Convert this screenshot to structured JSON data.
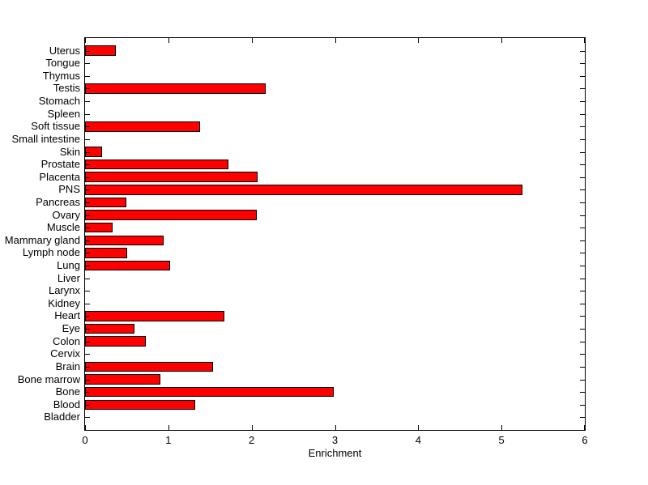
{
  "figure": {
    "background_color": "#ffffff",
    "axis_color": "#000000"
  },
  "chart_data": {
    "type": "bar",
    "orientation": "horizontal",
    "title": "",
    "xlabel": "Enrichment",
    "ylabel": "",
    "xlim": [
      0,
      6
    ],
    "xticks": [
      0,
      1,
      2,
      3,
      4,
      5,
      6
    ],
    "xtick_labels": [
      "0",
      "1",
      "2",
      "3",
      "4",
      "5",
      "6"
    ],
    "grid": false,
    "legend": null,
    "bar_color": "#ff0000",
    "bar_edge_color": "#000000",
    "categories": [
      "Uterus",
      "Tongue",
      "Thymus",
      "Testis",
      "Stomach",
      "Spleen",
      "Soft tissue",
      "Small intestine",
      "Skin",
      "Prostate",
      "Placenta",
      "PNS",
      "Pancreas",
      "Ovary",
      "Muscle",
      "Mammary gland",
      "Lymph node",
      "Lung",
      "Liver",
      "Larynx",
      "Kidney",
      "Heart",
      "Eye",
      "Colon",
      "Cervix",
      "Brain",
      "Bone marrow",
      "Bone",
      "Blood",
      "Bladder"
    ],
    "values": [
      0.37,
      0,
      0,
      2.17,
      0,
      0,
      1.38,
      0,
      0.2,
      1.72,
      2.07,
      5.25,
      0.5,
      2.06,
      0.33,
      0.94,
      0.51,
      1.02,
      0,
      0,
      0,
      1.67,
      0.59,
      0.73,
      0,
      1.54,
      0.9,
      2.99,
      1.32,
      0
    ]
  }
}
